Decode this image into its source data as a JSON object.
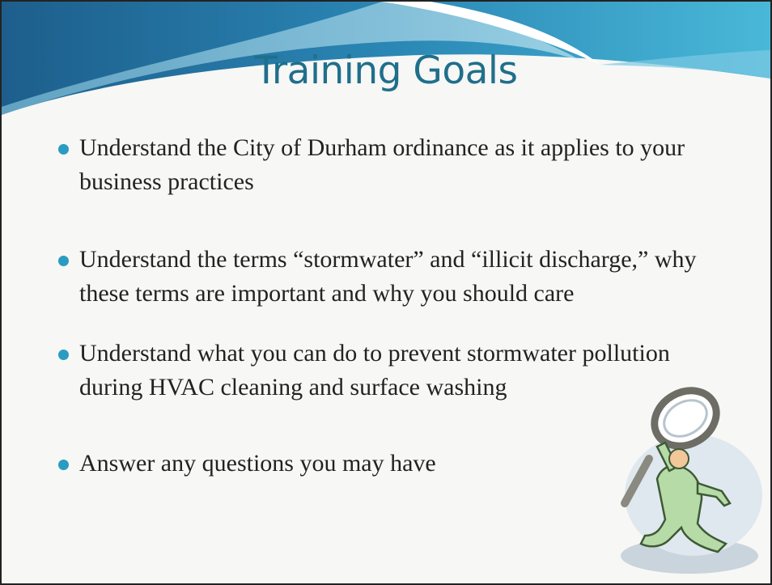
{
  "slide": {
    "title": "Training Goals",
    "bullets": [
      "Understand the City of Durham ordinance as it applies to your business practices",
      "Understand the terms “stormwater” and “illicit discharge,” why these terms are important and why you should care",
      "Understand what you can do to prevent stormwater pollution during HVAC cleaning and surface washing",
      "Answer any questions you may have"
    ]
  }
}
